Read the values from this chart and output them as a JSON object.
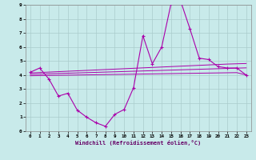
{
  "x": [
    0,
    1,
    2,
    3,
    4,
    5,
    6,
    7,
    8,
    9,
    10,
    11,
    12,
    13,
    14,
    15,
    16,
    17,
    18,
    19,
    20,
    21,
    22,
    23
  ],
  "line_main": [
    4.2,
    4.5,
    3.7,
    2.5,
    2.7,
    1.5,
    1.0,
    0.6,
    0.35,
    1.2,
    1.55,
    3.1,
    6.8,
    4.8,
    6.0,
    9.1,
    9.3,
    7.3,
    5.2,
    5.1,
    4.6,
    4.5,
    4.5,
    4.0
  ],
  "reg_upper": [
    4.15,
    4.18,
    4.21,
    4.24,
    4.27,
    4.3,
    4.33,
    4.36,
    4.39,
    4.42,
    4.45,
    4.48,
    4.51,
    4.54,
    4.57,
    4.6,
    4.63,
    4.66,
    4.69,
    4.72,
    4.75,
    4.78,
    4.8,
    4.82
  ],
  "reg_mid": [
    4.05,
    4.07,
    4.09,
    4.11,
    4.13,
    4.15,
    4.17,
    4.19,
    4.21,
    4.23,
    4.25,
    4.27,
    4.29,
    4.31,
    4.33,
    4.35,
    4.37,
    4.39,
    4.41,
    4.43,
    4.45,
    4.47,
    4.49,
    4.51
  ],
  "reg_lower": [
    3.95,
    3.96,
    3.97,
    3.98,
    3.99,
    4.0,
    4.01,
    4.02,
    4.03,
    4.04,
    4.05,
    4.06,
    4.07,
    4.08,
    4.09,
    4.1,
    4.11,
    4.12,
    4.13,
    4.14,
    4.15,
    4.16,
    4.17,
    4.0
  ],
  "bg_color": "#c8eaea",
  "grid_color": "#aacccc",
  "line_color": "#aa00aa",
  "xlabel": "Windchill (Refroidissement éolien,°C)",
  "ylim": [
    0,
    9
  ],
  "xlim": [
    -0.5,
    23.5
  ],
  "yticks": [
    0,
    1,
    2,
    3,
    4,
    5,
    6,
    7,
    8,
    9
  ],
  "xticks": [
    0,
    1,
    2,
    3,
    4,
    5,
    6,
    7,
    8,
    9,
    10,
    11,
    12,
    13,
    14,
    15,
    16,
    17,
    18,
    19,
    20,
    21,
    22,
    23
  ]
}
